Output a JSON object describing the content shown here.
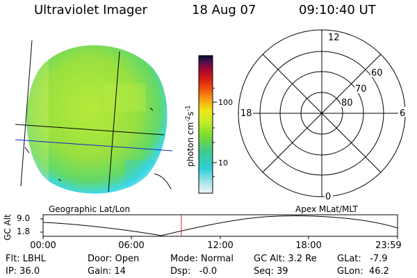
{
  "header": {
    "instrument": "Ultraviolet Imager",
    "date": "18 Aug 07",
    "time": "09:10:40 UT"
  },
  "colorbar": {
    "unit": "photon cm",
    "unit_exp1": "-2",
    "unit_s": "s",
    "unit_exp2": "-1",
    "ticks": [
      "100",
      "10"
    ]
  },
  "polar_plot": {
    "mlt_labels": {
      "top": "12",
      "left": "18",
      "right": "6",
      "bottom": "0"
    },
    "lat_labels": [
      "60",
      "70",
      "80"
    ]
  },
  "altitude_strip": {
    "title_left": "Geographic Lat/Lon",
    "title_right": "Apex MLat/MLT",
    "axis_label": "GC Alt",
    "y_max": "9.0",
    "y_min": "1.8",
    "x_ticks": [
      "00:00",
      "06:00",
      "12:00",
      "18:00",
      "23:59"
    ],
    "current_time_fraction": 0.39
  },
  "info": {
    "filter": "Flt: LBHL",
    "ip": "IP: 36.0",
    "door": "Door: Open",
    "gain": "Gain: 14",
    "mode": "Mode: Normal",
    "dsp": "Dsp:   -0.0",
    "gc_alt": "GC Alt: 3.2 Re",
    "seq": "Seq: 39",
    "glat": "GLat:   -7.9",
    "glon": "GLon:  46.2"
  },
  "colors": {
    "limb_cyan": "#3fd8e0",
    "disk_green": "#9ee23a",
    "lat_lon_grid": "#000000",
    "equator_line": "#1020d0",
    "time_marker": "#d02020"
  }
}
